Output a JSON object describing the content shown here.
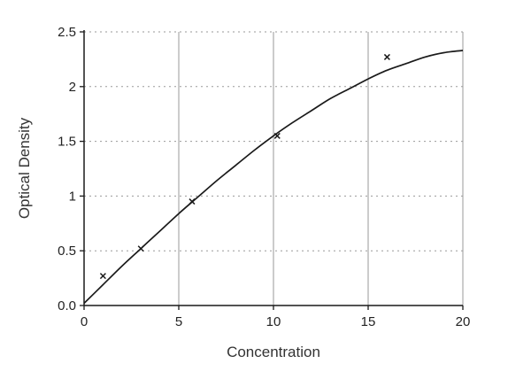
{
  "chart_data": {
    "type": "scatter",
    "title": "",
    "xlabel": "Concentration",
    "ylabel": "Optical Density",
    "xlim": [
      0,
      20
    ],
    "ylim": [
      0,
      2.5
    ],
    "xticks": [
      0,
      5,
      10,
      15,
      20
    ],
    "yticks": [
      0,
      0.5,
      1,
      1.5,
      2,
      2.5
    ],
    "xtick_labels": [
      "0",
      "5",
      "10",
      "15",
      "20"
    ],
    "ytick_labels": [
      "0.0",
      "0.5",
      "1",
      "1.5",
      "2",
      "2.5"
    ],
    "grid": {
      "vertical": "solid",
      "horizontal": "dashed"
    },
    "legend": "none",
    "series": [
      {
        "name": "measured-points",
        "points": [
          [
            1,
            0.27
          ],
          [
            3,
            0.52
          ],
          [
            5.7,
            0.95
          ],
          [
            10.2,
            1.55
          ],
          [
            16,
            2.27
          ]
        ]
      },
      {
        "name": "fitted-curve",
        "points": [
          [
            0,
            0.02
          ],
          [
            1,
            0.19
          ],
          [
            2,
            0.36
          ],
          [
            3,
            0.52
          ],
          [
            4,
            0.68
          ],
          [
            5,
            0.84
          ],
          [
            6,
            0.99
          ],
          [
            7,
            1.14
          ],
          [
            8,
            1.28
          ],
          [
            9,
            1.42
          ],
          [
            10,
            1.55
          ],
          [
            11,
            1.67
          ],
          [
            12,
            1.78
          ],
          [
            13,
            1.89
          ],
          [
            14,
            1.98
          ],
          [
            15,
            2.07
          ],
          [
            16,
            2.15
          ],
          [
            17,
            2.21
          ],
          [
            18,
            2.27
          ],
          [
            19,
            2.31
          ],
          [
            20,
            2.33
          ]
        ]
      }
    ],
    "colors": {
      "axis": "#1a1a1a",
      "grid": "#9a9a9a",
      "curve": "#1a1a1a",
      "marker": "#1a1a1a"
    }
  }
}
